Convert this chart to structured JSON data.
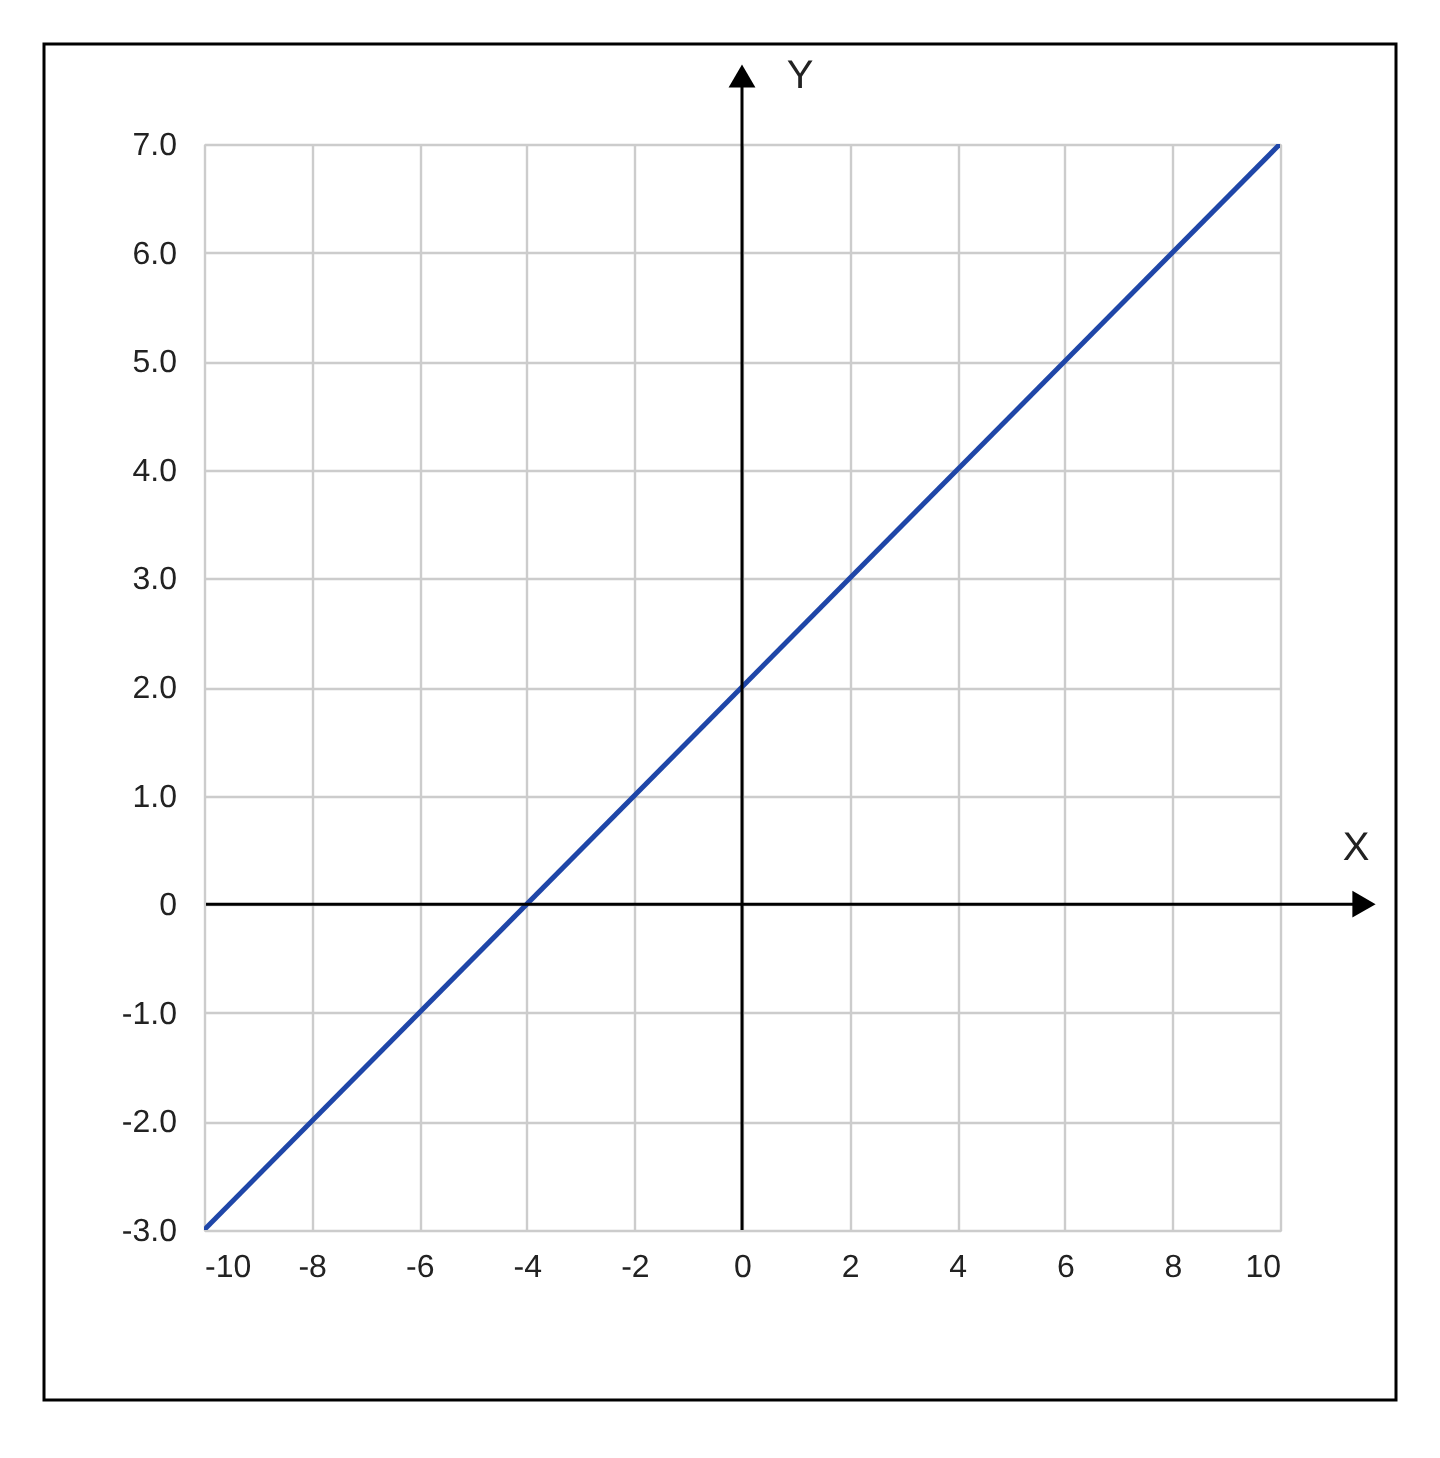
{
  "chart_data": {
    "type": "line",
    "xlabel": "X",
    "ylabel": "Y",
    "series": [
      {
        "color": "#1f46a8",
        "x": [
          -10,
          10
        ],
        "values": [
          -3,
          7
        ]
      }
    ],
    "xlim": [
      -10,
      10
    ],
    "xticks": [
      -10,
      -8,
      -6,
      -4,
      -2,
      0,
      2,
      4,
      6,
      8,
      10
    ],
    "ylim": [
      -3,
      7
    ],
    "yticks": [
      {
        "value": -3,
        "label": "-3.0"
      },
      {
        "value": -2,
        "label": "-2.0"
      },
      {
        "value": -1,
        "label": "-1.0"
      },
      0,
      {
        "value": 1,
        "label": "1.0"
      },
      {
        "value": 2,
        "label": "2.0"
      },
      {
        "value": 3,
        "label": "3.0"
      },
      {
        "value": 4,
        "label": "4.0"
      },
      {
        "value": 5,
        "label": "5.0"
      },
      {
        "value": 6,
        "label": "6.0"
      },
      {
        "value": 7,
        "label": "7.0"
      }
    ],
    "grid": true
  }
}
